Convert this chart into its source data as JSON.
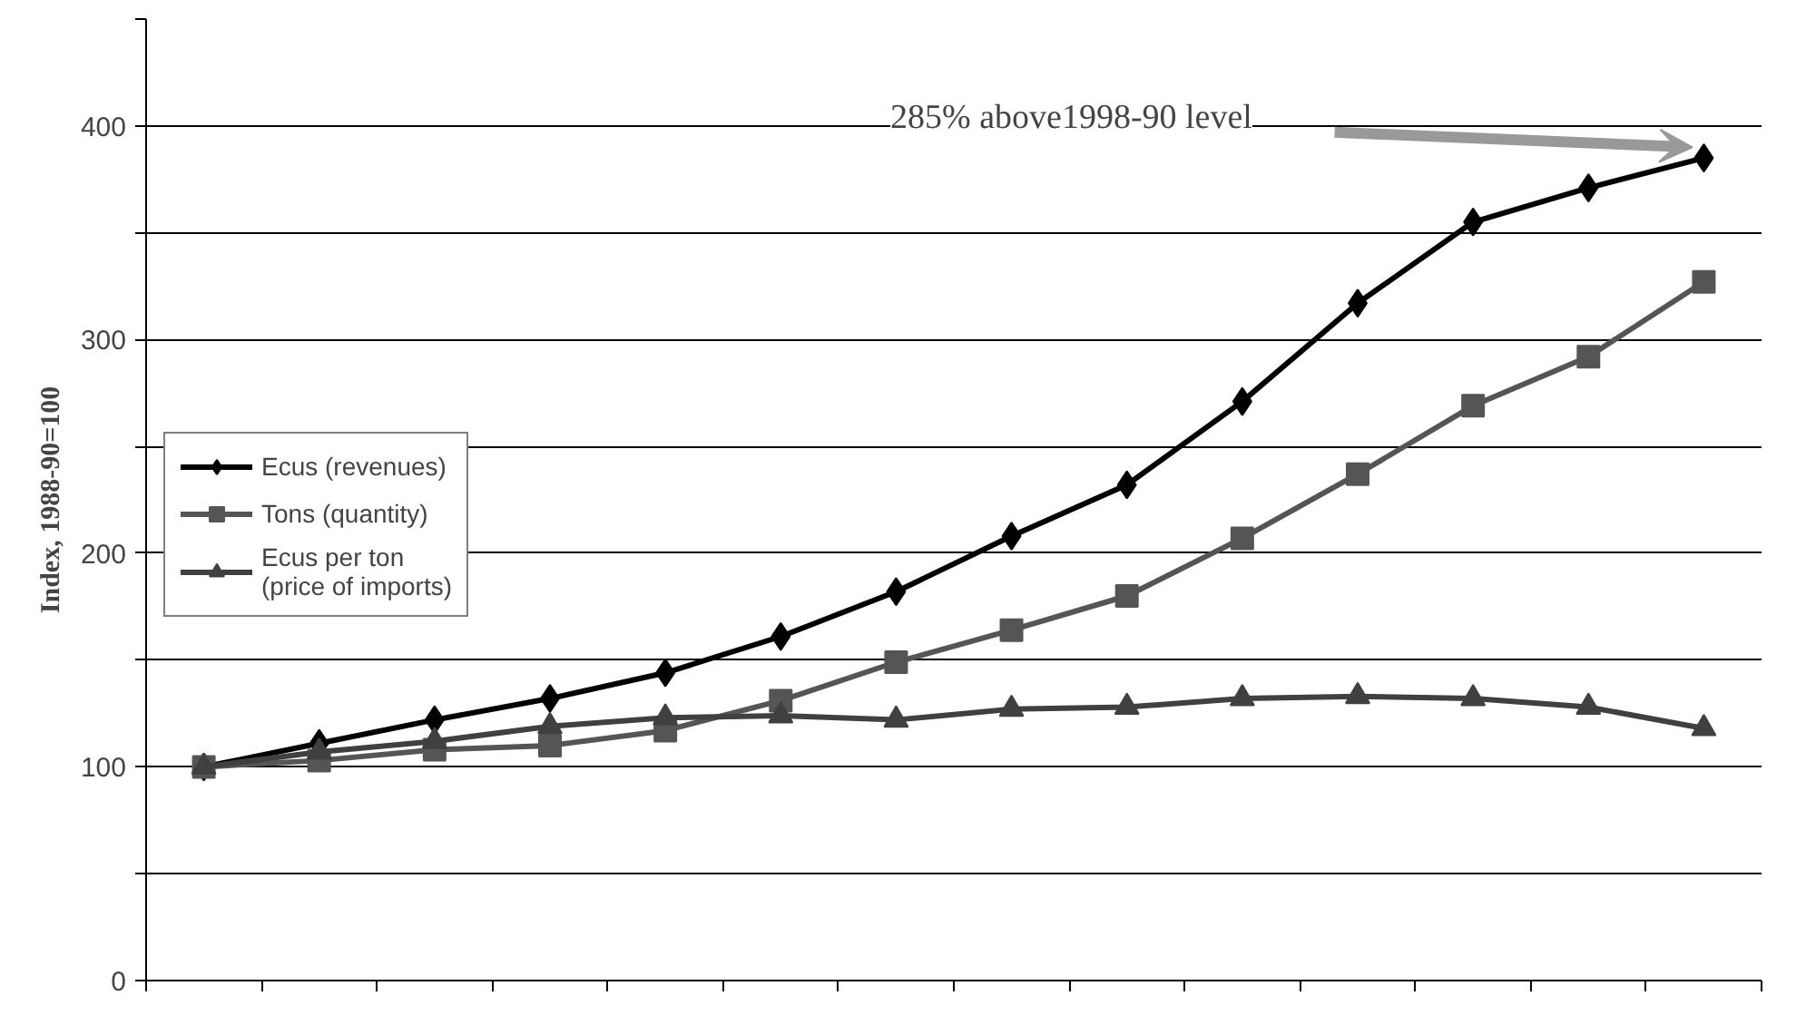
{
  "chart_data": {
    "type": "line",
    "ylabel": "Index, 1988-90=100",
    "annotations": [
      "285% above1998-90 level"
    ],
    "categories": [
      null,
      null,
      null,
      null,
      null,
      null,
      null,
      null,
      null,
      null,
      null,
      null,
      null,
      null
    ],
    "series": [
      {
        "name": "Ecus (revenues)",
        "color": "#000000",
        "marker": "diamond",
        "values": [
          100,
          111,
          122,
          132,
          144,
          161,
          182,
          208,
          232,
          271,
          317,
          355,
          371,
          385
        ]
      },
      {
        "name": "Tons (quantity)",
        "color": "#555555",
        "marker": "square",
        "values": [
          100,
          103,
          108,
          110,
          117,
          131,
          149,
          164,
          180,
          207,
          237,
          269,
          292,
          327
        ]
      },
      {
        "name": "Ecus per ton\n(price of imports)",
        "color": "#404040",
        "marker": "triangle",
        "values": [
          100,
          107,
          112,
          119,
          123,
          124,
          122,
          127,
          128,
          132,
          133,
          132,
          128,
          118
        ]
      }
    ],
    "ylim": [
      0,
      450
    ],
    "yticks": [
      0,
      {
        "value": 50,
        "label": null
      },
      100,
      {
        "value": 150,
        "label": null
      },
      200,
      {
        "value": 250,
        "label": null
      },
      300,
      {
        "value": 350,
        "label": null
      },
      400,
      {
        "value": 450,
        "label": null
      }
    ],
    "grid": "y",
    "legend": "left",
    "line_style": "solid"
  }
}
